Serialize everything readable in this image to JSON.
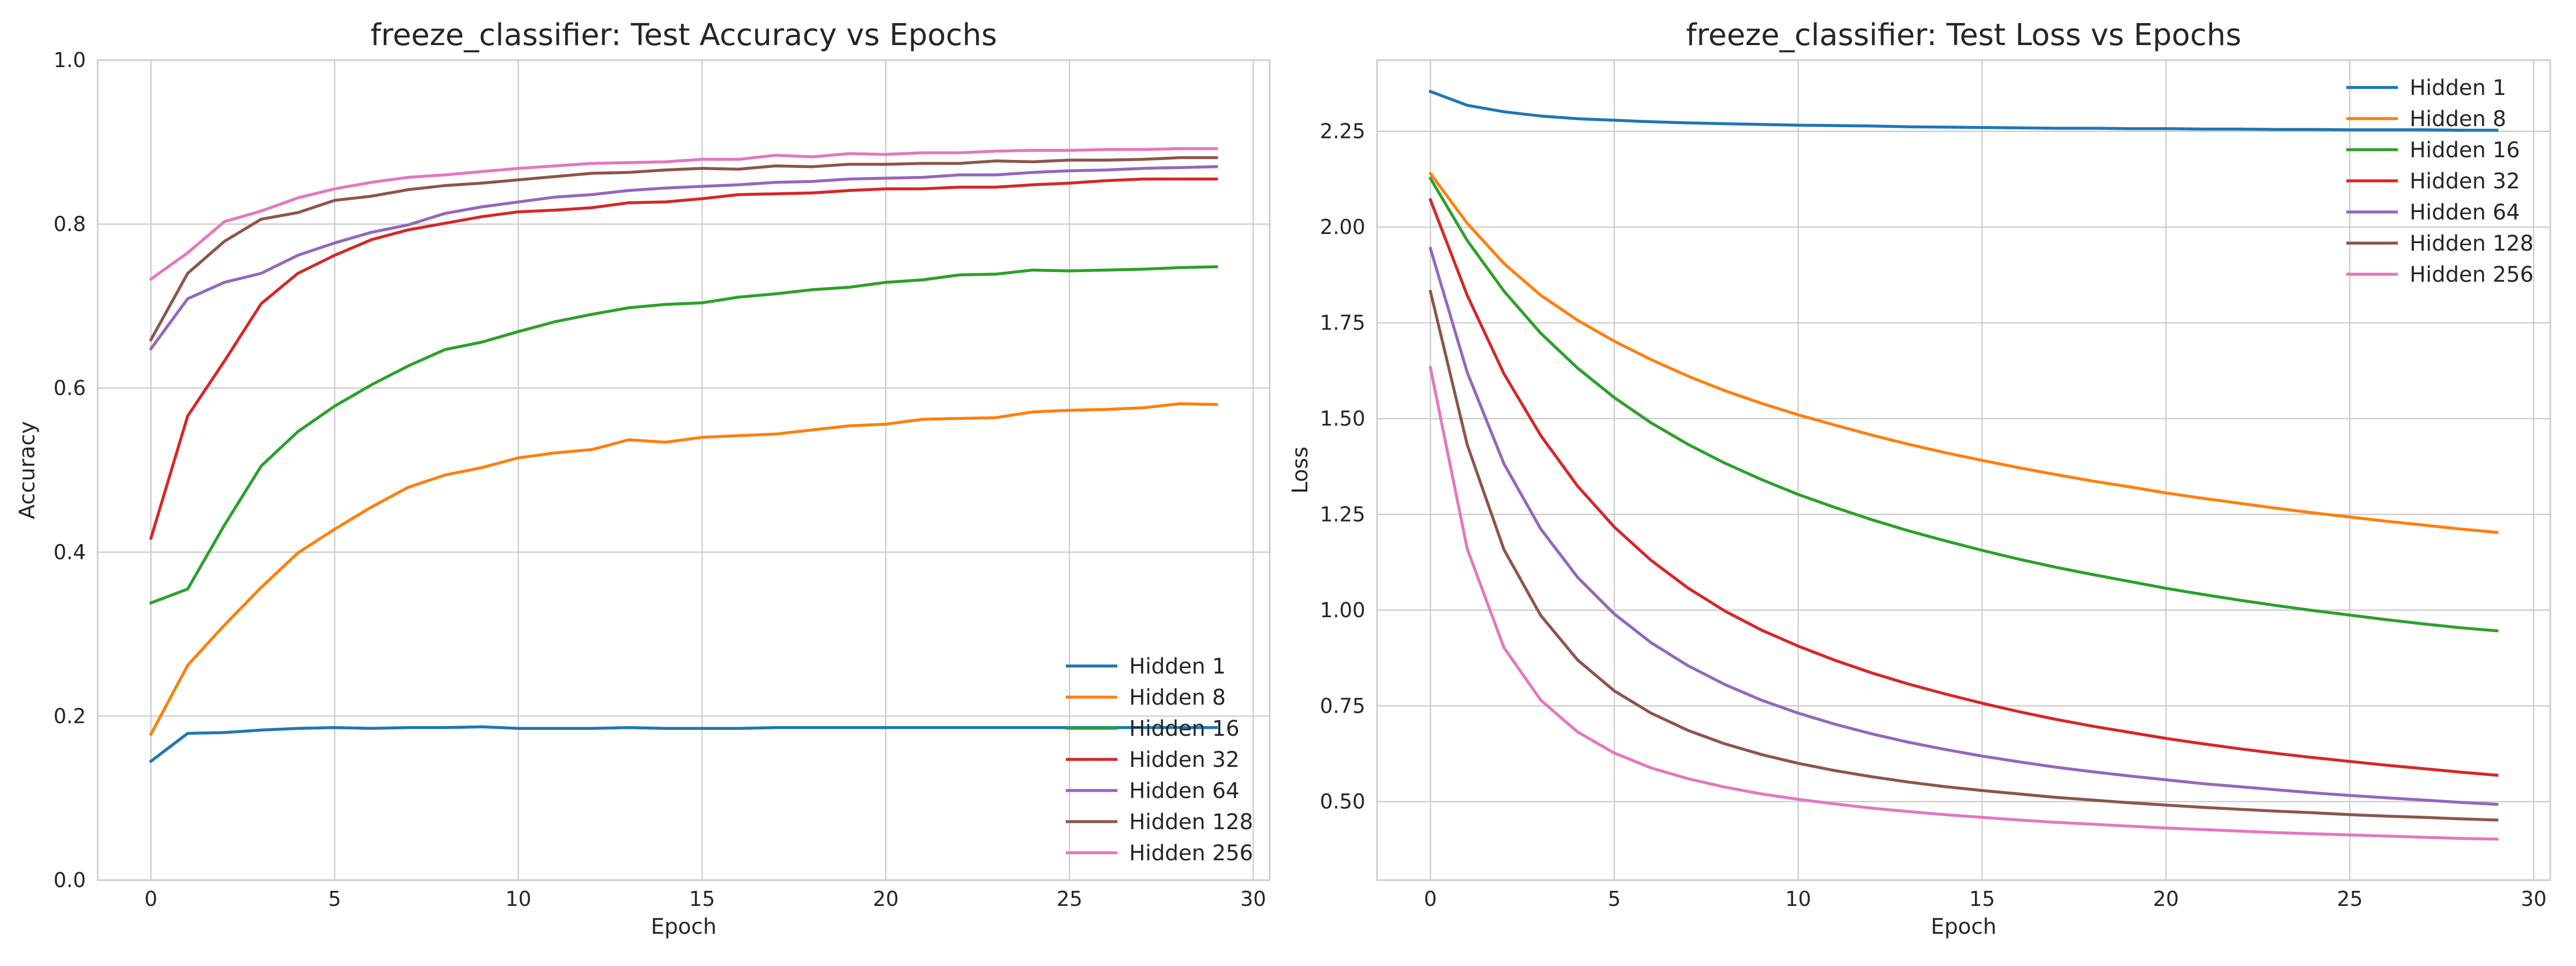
{
  "chart_data": [
    {
      "type": "line",
      "title": "freeze_classifier: Test Accuracy vs Epochs",
      "xlabel": "Epoch",
      "ylabel": "Accuracy",
      "xlim": [
        -1.45,
        30.45
      ],
      "ylim": [
        0.0,
        1.0
      ],
      "xticks": [
        0,
        5,
        10,
        15,
        20,
        25,
        30
      ],
      "yticks": [
        0.0,
        0.2,
        0.4,
        0.6,
        0.8,
        1.0
      ],
      "grid": true,
      "legend_position": "bottom-right",
      "x": [
        0,
        1,
        2,
        3,
        4,
        5,
        6,
        7,
        8,
        9,
        10,
        11,
        12,
        13,
        14,
        15,
        16,
        17,
        18,
        19,
        20,
        21,
        22,
        23,
        24,
        25,
        26,
        27,
        28,
        29
      ],
      "series": [
        {
          "name": "Hidden 1",
          "color": "#1f77b4",
          "values": [
            0.145,
            0.179,
            0.18,
            0.183,
            0.185,
            0.186,
            0.185,
            0.186,
            0.186,
            0.187,
            0.185,
            0.185,
            0.185,
            0.186,
            0.185,
            0.185,
            0.185,
            0.186,
            0.186,
            0.186,
            0.186,
            0.186,
            0.186,
            0.186,
            0.186,
            0.186,
            0.186,
            0.186,
            0.186,
            0.186
          ]
        },
        {
          "name": "Hidden 8",
          "color": "#ff7f0e",
          "values": [
            0.178,
            0.262,
            0.311,
            0.357,
            0.399,
            0.428,
            0.455,
            0.479,
            0.494,
            0.503,
            0.515,
            0.521,
            0.525,
            0.537,
            0.534,
            0.54,
            0.542,
            0.544,
            0.549,
            0.554,
            0.556,
            0.562,
            0.563,
            0.564,
            0.571,
            0.573,
            0.574,
            0.576,
            0.581,
            0.58
          ]
        },
        {
          "name": "Hidden 16",
          "color": "#2ca02c",
          "values": [
            0.338,
            0.355,
            0.433,
            0.505,
            0.547,
            0.578,
            0.604,
            0.627,
            0.647,
            0.656,
            0.669,
            0.681,
            0.69,
            0.698,
            0.702,
            0.704,
            0.711,
            0.715,
            0.72,
            0.723,
            0.729,
            0.732,
            0.738,
            0.739,
            0.744,
            0.743,
            0.744,
            0.745,
            0.747,
            0.748
          ]
        },
        {
          "name": "Hidden 32",
          "color": "#d62728",
          "values": [
            0.417,
            0.566,
            0.633,
            0.703,
            0.74,
            0.762,
            0.781,
            0.793,
            0.801,
            0.809,
            0.815,
            0.817,
            0.82,
            0.826,
            0.827,
            0.831,
            0.836,
            0.837,
            0.838,
            0.841,
            0.843,
            0.843,
            0.845,
            0.845,
            0.848,
            0.85,
            0.853,
            0.855,
            0.855,
            0.855
          ]
        },
        {
          "name": "Hidden 64",
          "color": "#9467bd",
          "values": [
            0.648,
            0.709,
            0.729,
            0.74,
            0.762,
            0.777,
            0.79,
            0.799,
            0.813,
            0.821,
            0.827,
            0.833,
            0.836,
            0.841,
            0.844,
            0.846,
            0.848,
            0.851,
            0.852,
            0.855,
            0.856,
            0.857,
            0.86,
            0.86,
            0.863,
            0.865,
            0.866,
            0.868,
            0.869,
            0.87
          ]
        },
        {
          "name": "Hidden 128",
          "color": "#8c564b",
          "values": [
            0.659,
            0.74,
            0.779,
            0.806,
            0.814,
            0.829,
            0.834,
            0.842,
            0.847,
            0.85,
            0.854,
            0.858,
            0.862,
            0.863,
            0.866,
            0.868,
            0.867,
            0.871,
            0.87,
            0.873,
            0.873,
            0.874,
            0.874,
            0.877,
            0.876,
            0.878,
            0.878,
            0.879,
            0.881,
            0.881
          ]
        },
        {
          "name": "Hidden 256",
          "color": "#e377c2",
          "values": [
            0.733,
            0.765,
            0.803,
            0.816,
            0.832,
            0.843,
            0.851,
            0.857,
            0.86,
            0.864,
            0.868,
            0.871,
            0.874,
            0.875,
            0.876,
            0.879,
            0.879,
            0.884,
            0.882,
            0.886,
            0.885,
            0.887,
            0.887,
            0.889,
            0.89,
            0.89,
            0.891,
            0.891,
            0.892,
            0.892
          ]
        }
      ]
    },
    {
      "type": "line",
      "title": "freeze_classifier: Test Loss vs Epochs",
      "xlabel": "Epoch",
      "ylabel": "Loss",
      "xlim": [
        -1.45,
        30.45
      ],
      "ylim": [
        0.295,
        2.436
      ],
      "xticks": [
        0,
        5,
        10,
        15,
        20,
        25,
        30
      ],
      "yticks": [
        0.5,
        0.75,
        1.0,
        1.25,
        1.5,
        1.75,
        2.0,
        2.25
      ],
      "ytick_labels": [
        "0.50",
        "0.75",
        "1.00",
        "1.25",
        "1.50",
        "1.75",
        "2.00",
        "2.25"
      ],
      "grid": true,
      "legend_position": "top-right",
      "x": [
        0,
        1,
        2,
        3,
        4,
        5,
        6,
        7,
        8,
        9,
        10,
        11,
        12,
        13,
        14,
        15,
        16,
        17,
        18,
        19,
        20,
        21,
        22,
        23,
        24,
        25,
        26,
        27,
        28,
        29
      ],
      "series": [
        {
          "name": "Hidden 1",
          "color": "#1f77b4",
          "values": [
            2.354,
            2.318,
            2.301,
            2.29,
            2.283,
            2.279,
            2.275,
            2.272,
            2.27,
            2.268,
            2.266,
            2.265,
            2.264,
            2.262,
            2.261,
            2.26,
            2.259,
            2.258,
            2.258,
            2.257,
            2.257,
            2.256,
            2.256,
            2.255,
            2.255,
            2.254,
            2.254,
            2.254,
            2.253,
            2.253
          ]
        },
        {
          "name": "Hidden 8",
          "color": "#ff7f0e",
          "values": [
            2.14,
            2.01,
            1.905,
            1.822,
            1.757,
            1.702,
            1.654,
            1.611,
            1.573,
            1.54,
            1.51,
            1.483,
            1.457,
            1.433,
            1.411,
            1.391,
            1.372,
            1.354,
            1.337,
            1.322,
            1.306,
            1.292,
            1.279,
            1.266,
            1.254,
            1.243,
            1.232,
            1.222,
            1.212,
            1.203
          ]
        },
        {
          "name": "Hidden 16",
          "color": "#2ca02c",
          "values": [
            2.127,
            1.965,
            1.833,
            1.723,
            1.632,
            1.555,
            1.489,
            1.433,
            1.384,
            1.341,
            1.302,
            1.268,
            1.236,
            1.207,
            1.181,
            1.156,
            1.133,
            1.112,
            1.093,
            1.075,
            1.057,
            1.041,
            1.026,
            1.012,
            0.999,
            0.987,
            0.975,
            0.964,
            0.954,
            0.946
          ]
        },
        {
          "name": "Hidden 32",
          "color": "#d62728",
          "values": [
            2.071,
            1.822,
            1.617,
            1.456,
            1.324,
            1.217,
            1.13,
            1.058,
            0.998,
            0.948,
            0.906,
            0.869,
            0.836,
            0.807,
            0.781,
            0.757,
            0.735,
            0.715,
            0.697,
            0.681,
            0.665,
            0.651,
            0.638,
            0.626,
            0.615,
            0.605,
            0.595,
            0.586,
            0.577,
            0.569
          ]
        },
        {
          "name": "Hidden 64",
          "color": "#9467bd",
          "values": [
            1.944,
            1.621,
            1.382,
            1.212,
            1.086,
            0.99,
            0.915,
            0.855,
            0.806,
            0.765,
            0.731,
            0.702,
            0.677,
            0.655,
            0.636,
            0.619,
            0.604,
            0.59,
            0.578,
            0.567,
            0.557,
            0.547,
            0.539,
            0.531,
            0.523,
            0.516,
            0.51,
            0.504,
            0.498,
            0.493
          ]
        },
        {
          "name": "Hidden 128",
          "color": "#8c564b",
          "values": [
            1.832,
            1.432,
            1.158,
            0.986,
            0.87,
            0.789,
            0.731,
            0.686,
            0.651,
            0.623,
            0.6,
            0.581,
            0.565,
            0.551,
            0.539,
            0.529,
            0.52,
            0.511,
            0.504,
            0.497,
            0.491,
            0.485,
            0.48,
            0.475,
            0.471,
            0.466,
            0.462,
            0.459,
            0.455,
            0.452
          ]
        },
        {
          "name": "Hidden 256",
          "color": "#e377c2",
          "values": [
            1.633,
            1.16,
            0.902,
            0.765,
            0.682,
            0.627,
            0.588,
            0.56,
            0.538,
            0.52,
            0.506,
            0.494,
            0.483,
            0.474,
            0.466,
            0.459,
            0.452,
            0.446,
            0.441,
            0.436,
            0.431,
            0.427,
            0.423,
            0.419,
            0.416,
            0.413,
            0.41,
            0.407,
            0.404,
            0.402
          ]
        }
      ]
    }
  ]
}
